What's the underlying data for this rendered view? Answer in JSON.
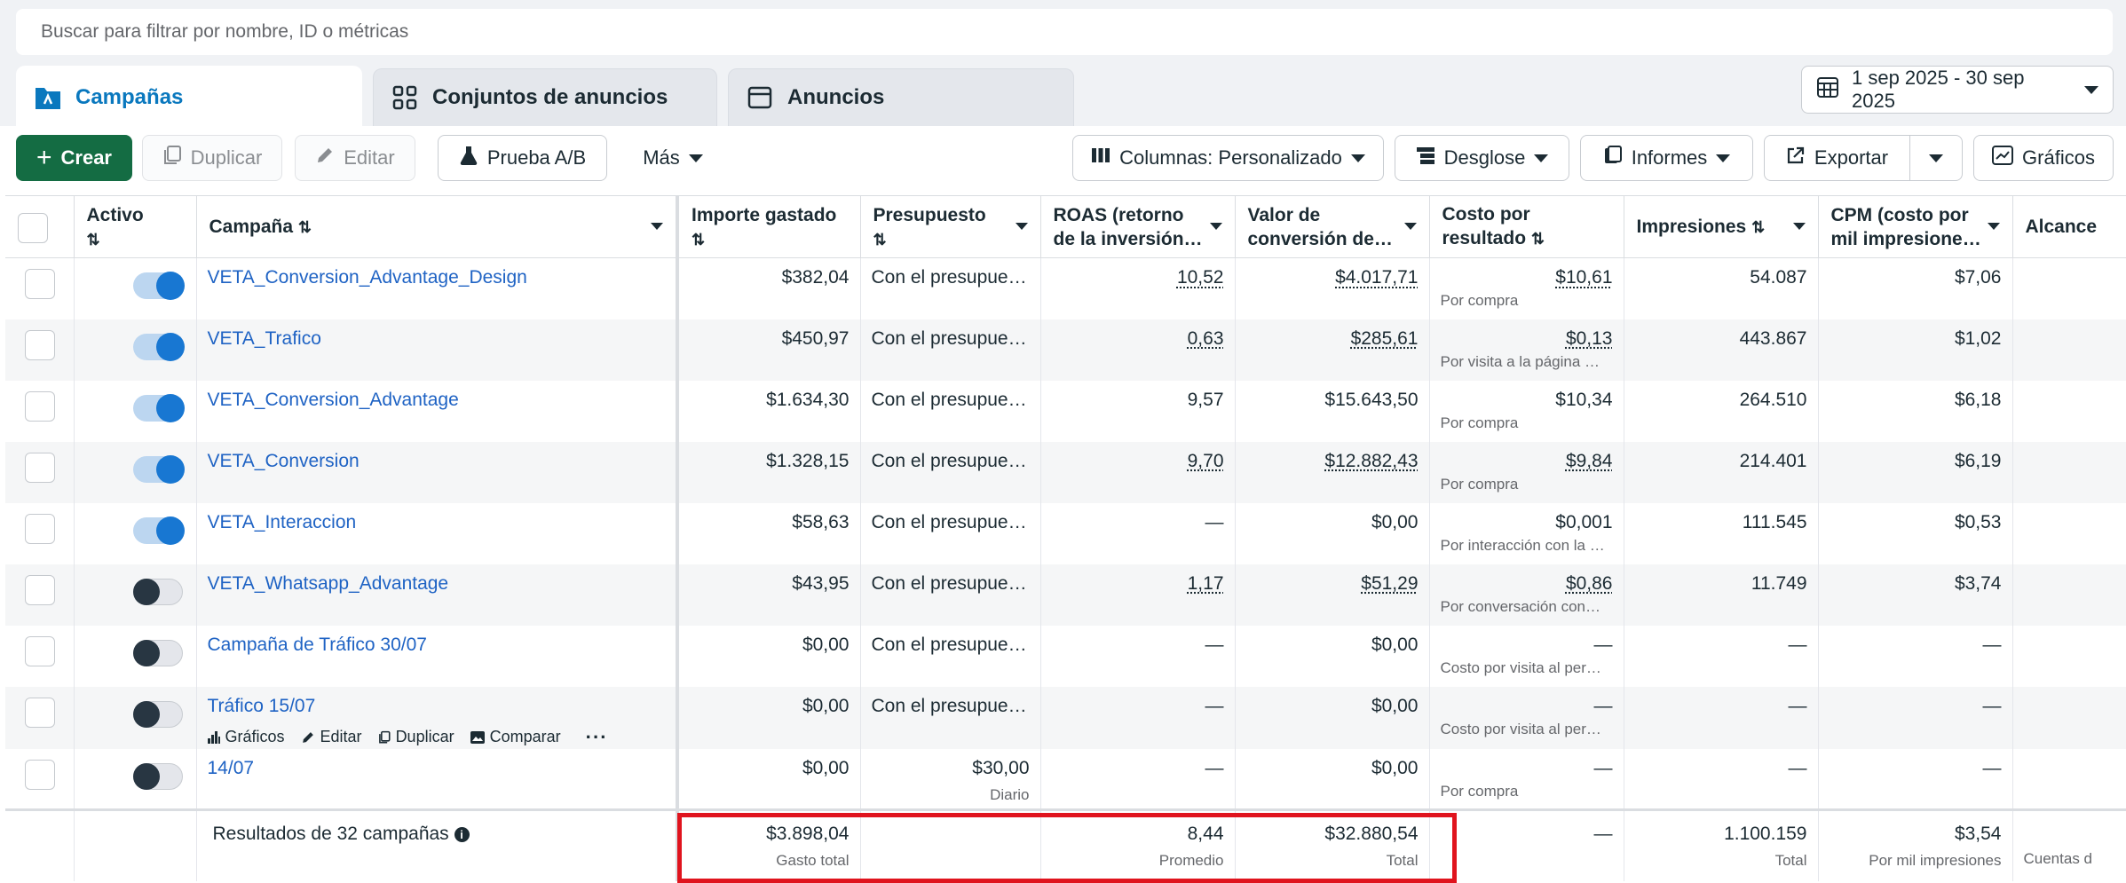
{
  "search": {
    "placeholder": "Buscar para filtrar por nombre, ID o métricas"
  },
  "tabs": [
    {
      "label": "Campañas",
      "icon": "campaign-folder-icon"
    },
    {
      "label": "Conjuntos de anuncios",
      "icon": "grid-icon"
    },
    {
      "label": "Anuncios",
      "icon": "ad-window-icon"
    }
  ],
  "date_range": "1 sep 2025 - 30 sep 2025",
  "toolbar": {
    "create": "Crear",
    "duplicate": "Duplicar",
    "edit": "Editar",
    "ab_test": "Prueba A/B",
    "more": "Más",
    "columns": "Columnas: Personalizado",
    "breakdown": "Desglose",
    "reports": "Informes",
    "export": "Exportar",
    "charts": "Gráficos"
  },
  "columns": {
    "active": "Activo",
    "campaign": "Campaña",
    "spent": "Importe gastado",
    "budget": "Presupuesto",
    "roas_1": "ROAS (retorno",
    "roas_2": "de la inversión…",
    "conv_1": "Valor de",
    "conv_2": "conversión de…",
    "cpr_1": "Costo por",
    "cpr_2": "resultado",
    "impressions": "Impresiones",
    "cpm_1": "CPM (costo por",
    "cpm_2": "mil impresione…",
    "reach": "Alcance"
  },
  "rows": [
    {
      "on": true,
      "name": "VETA_Conversion_Advantage_Design",
      "spent": "$382,04",
      "budget": "Con el presupue…",
      "budget_sub": "",
      "roas": "10,52",
      "conv": "$4.017,71",
      "cpr": "$10,61",
      "cpr_sub": "Por compra",
      "impr": "54.087",
      "cpm": "$7,06"
    },
    {
      "on": true,
      "name": "VETA_Trafico",
      "spent": "$450,97",
      "budget": "Con el presupue…",
      "budget_sub": "",
      "roas": "0,63",
      "conv": "$285,61",
      "cpr": "$0,13",
      "cpr_sub": "Por visita a la página …",
      "impr": "443.867",
      "cpm": "$1,02"
    },
    {
      "on": true,
      "name": "VETA_Conversion_Advantage",
      "spent": "$1.634,30",
      "budget": "Con el presupue…",
      "budget_sub": "",
      "roas": "9,57",
      "conv": "$15.643,50",
      "cpr": "$10,34",
      "cpr_sub": "Por compra",
      "impr": "264.510",
      "cpm": "$6,18"
    },
    {
      "on": true,
      "name": "VETA_Conversion",
      "spent": "$1.328,15",
      "budget": "Con el presupue…",
      "budget_sub": "",
      "roas": "9,70",
      "conv": "$12.882,43",
      "cpr": "$9,84",
      "cpr_sub": "Por compra",
      "impr": "214.401",
      "cpm": "$6,19"
    },
    {
      "on": true,
      "name": "VETA_Interaccion",
      "spent": "$58,63",
      "budget": "Con el presupue…",
      "budget_sub": "",
      "roas": "—",
      "conv": "$0,00",
      "cpr": "$0,001",
      "cpr_sub": "Por interacción con la …",
      "impr": "111.545",
      "cpm": "$0,53"
    },
    {
      "on": false,
      "name": "VETA_Whatsapp_Advantage",
      "spent": "$43,95",
      "budget": "Con el presupue…",
      "budget_sub": "",
      "roas": "1,17",
      "conv": "$51,29",
      "cpr": "$0,86",
      "cpr_sub": "Por conversación con…",
      "impr": "11.749",
      "cpm": "$3,74"
    },
    {
      "on": false,
      "name": "Campaña de Tráfico 30/07",
      "spent": "$0,00",
      "budget": "Con el presupue…",
      "budget_sub": "",
      "roas": "—",
      "conv": "$0,00",
      "cpr": "—",
      "cpr_sub": "Costo por visita al per…",
      "impr": "—",
      "cpm": "—"
    },
    {
      "on": false,
      "name": "Tráfico 15/07",
      "spent": "$0,00",
      "budget": "Con el presupue…",
      "budget_sub": "",
      "roas": "—",
      "conv": "$0,00",
      "cpr": "—",
      "cpr_sub": "Costo por visita al per…",
      "impr": "—",
      "cpm": "—"
    },
    {
      "on": false,
      "name": "14/07",
      "spent": "$0,00",
      "budget": "$30,00",
      "budget_sub": "Diario",
      "roas": "—",
      "conv": "$0,00",
      "cpr": "—",
      "cpr_sub": "Por compra",
      "impr": "—",
      "cpm": "—"
    }
  ],
  "row_actions": {
    "charts": "Gráficos",
    "edit": "Editar",
    "duplicate": "Duplicar",
    "compare": "Comparar"
  },
  "totals": {
    "label": "Resultados de 32 campañas",
    "spent": "$3.898,04",
    "spent_sub": "Gasto total",
    "roas": "8,44",
    "roas_sub": "Promedio",
    "conv": "$32.880,54",
    "conv_sub": "Total",
    "cpr": "—",
    "impr": "1.100.159",
    "impr_sub": "Total",
    "cpm": "$3,54",
    "cpm_sub": "Por mil impresiones",
    "reach_sub": "Cuentas d"
  },
  "colors": {
    "accent": "#0a78be",
    "primary_green": "#146c43",
    "highlight_red": "#e0141e",
    "link": "#1f63c4"
  }
}
